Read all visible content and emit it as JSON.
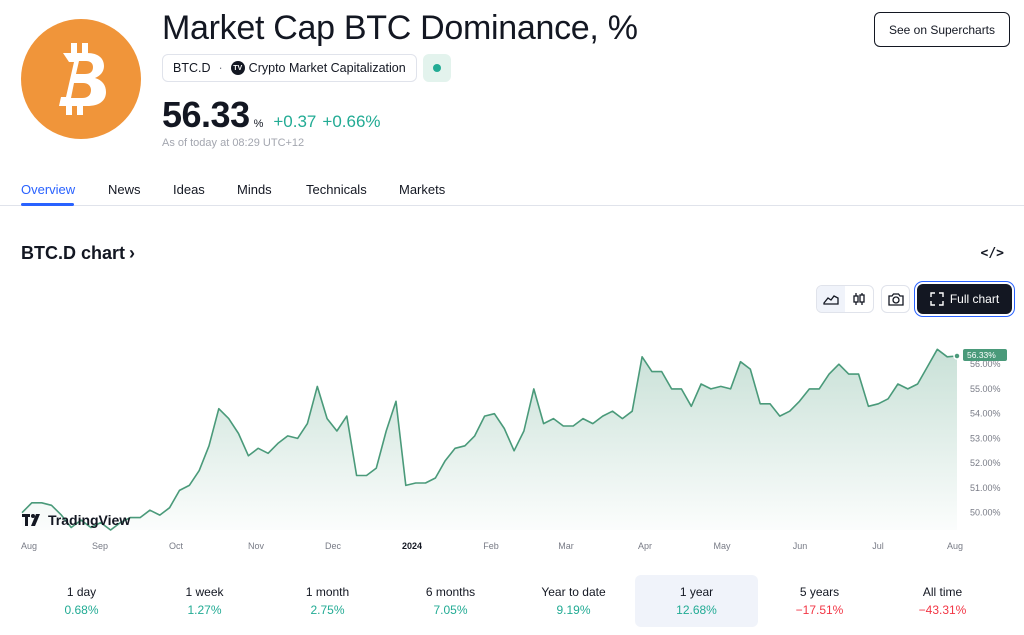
{
  "header": {
    "title": "Market Cap BTC Dominance, %",
    "symbol": "BTC.D",
    "separator": "·",
    "exchange": "Crypto Market Capitalization",
    "price": "56.33",
    "unit": "%",
    "change_abs": "+0.37",
    "change_pct": "+0.66%",
    "as_of": "As of today at 08:29 UTC+12",
    "supercharts_label": "See on Supercharts",
    "logo_icon": "bitcoin-icon",
    "accent_color": "#f0953a"
  },
  "tabs": [
    {
      "label": "Overview",
      "active": true
    },
    {
      "label": "News"
    },
    {
      "label": "Ideas"
    },
    {
      "label": "Minds"
    },
    {
      "label": "Technicals"
    },
    {
      "label": "Markets"
    }
  ],
  "chart_section": {
    "heading": "BTC.D chart",
    "heading_chevron": "›",
    "embed_icon": "</>",
    "full_chart_label": "Full chart",
    "brand": "TradingView"
  },
  "chart_data": {
    "type": "area",
    "title": "",
    "xlabel": "",
    "ylabel": "",
    "line_color": "#4a9a7a",
    "last_value_label": "56.33%",
    "x_ticks": [
      "Aug",
      "Sep",
      "Oct",
      "Nov",
      "Dec",
      "2024",
      "Feb",
      "Mar",
      "Apr",
      "May",
      "Jun",
      "Jul",
      "Aug"
    ],
    "y_ticks": [
      "56.00%",
      "55.00%",
      "54.00%",
      "53.00%",
      "52.00%",
      "51.00%",
      "50.00%"
    ],
    "ylim": [
      49.3,
      57.3
    ],
    "values": [
      50.0,
      50.4,
      50.4,
      50.3,
      49.9,
      49.4,
      49.7,
      49.4,
      49.6,
      49.3,
      49.6,
      49.8,
      49.8,
      50.1,
      49.9,
      50.2,
      50.9,
      51.1,
      51.7,
      52.7,
      54.2,
      53.8,
      53.2,
      52.3,
      52.6,
      52.4,
      52.8,
      53.1,
      53.0,
      53.6,
      55.1,
      53.8,
      53.3,
      53.9,
      51.5,
      51.5,
      51.8,
      53.3,
      54.5,
      51.1,
      51.2,
      51.2,
      51.4,
      52.1,
      52.6,
      52.7,
      53.1,
      53.9,
      54.0,
      53.4,
      52.5,
      53.3,
      55.0,
      53.6,
      53.8,
      53.5,
      53.5,
      53.8,
      53.6,
      53.9,
      54.1,
      53.8,
      54.1,
      56.3,
      55.7,
      55.7,
      55.0,
      55.0,
      54.3,
      55.2,
      55.0,
      55.1,
      55.0,
      56.1,
      55.8,
      54.4,
      54.4,
      53.9,
      54.1,
      54.5,
      55.0,
      55.0,
      55.6,
      56.0,
      55.6,
      55.6,
      54.3,
      54.4,
      54.6,
      55.2,
      55.0,
      55.2,
      55.9,
      56.6,
      56.3,
      56.33
    ]
  },
  "periods": [
    {
      "label": "1 day",
      "value": "0.68%",
      "sign": "pos"
    },
    {
      "label": "1 week",
      "value": "1.27%",
      "sign": "pos"
    },
    {
      "label": "1 month",
      "value": "2.75%",
      "sign": "pos"
    },
    {
      "label": "6 months",
      "value": "7.05%",
      "sign": "pos"
    },
    {
      "label": "Year to date",
      "value": "9.19%",
      "sign": "pos"
    },
    {
      "label": "1 year",
      "value": "12.68%",
      "sign": "pos",
      "selected": true
    },
    {
      "label": "5 years",
      "value": "−17.51%",
      "sign": "neg"
    },
    {
      "label": "All time",
      "value": "−43.31%",
      "sign": "neg"
    }
  ]
}
